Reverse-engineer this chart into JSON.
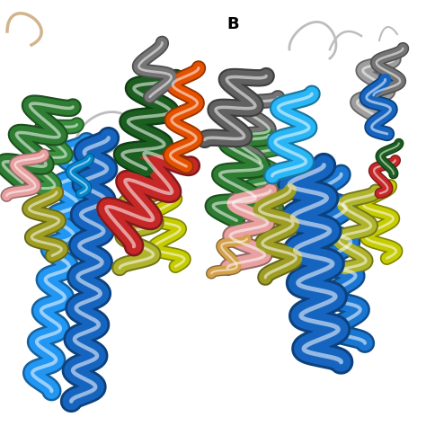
{
  "label_B": "B",
  "label_B_fontsize": 13,
  "label_B_fontweight": "bold",
  "background_color": "#ffffff",
  "figsize": [
    4.74,
    4.74
  ],
  "dpi": 100
}
